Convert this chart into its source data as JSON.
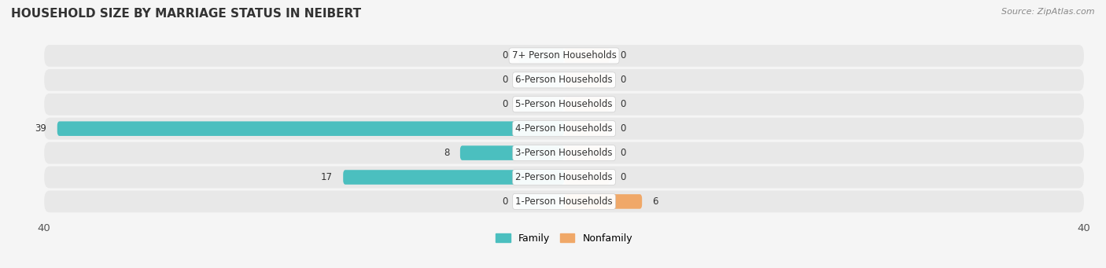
{
  "title": "HOUSEHOLD SIZE BY MARRIAGE STATUS IN NEIBERT",
  "source": "Source: ZipAtlas.com",
  "categories": [
    "7+ Person Households",
    "6-Person Households",
    "5-Person Households",
    "4-Person Households",
    "3-Person Households",
    "2-Person Households",
    "1-Person Households"
  ],
  "family_values": [
    0,
    0,
    0,
    39,
    8,
    17,
    0
  ],
  "nonfamily_values": [
    0,
    0,
    0,
    0,
    0,
    0,
    6
  ],
  "family_color": "#4BBFBF",
  "nonfamily_color": "#F0A868",
  "xlim": 40,
  "min_stub": 3.5,
  "title_fontsize": 11,
  "label_fontsize": 8.5,
  "tick_fontsize": 9.5,
  "source_fontsize": 8
}
